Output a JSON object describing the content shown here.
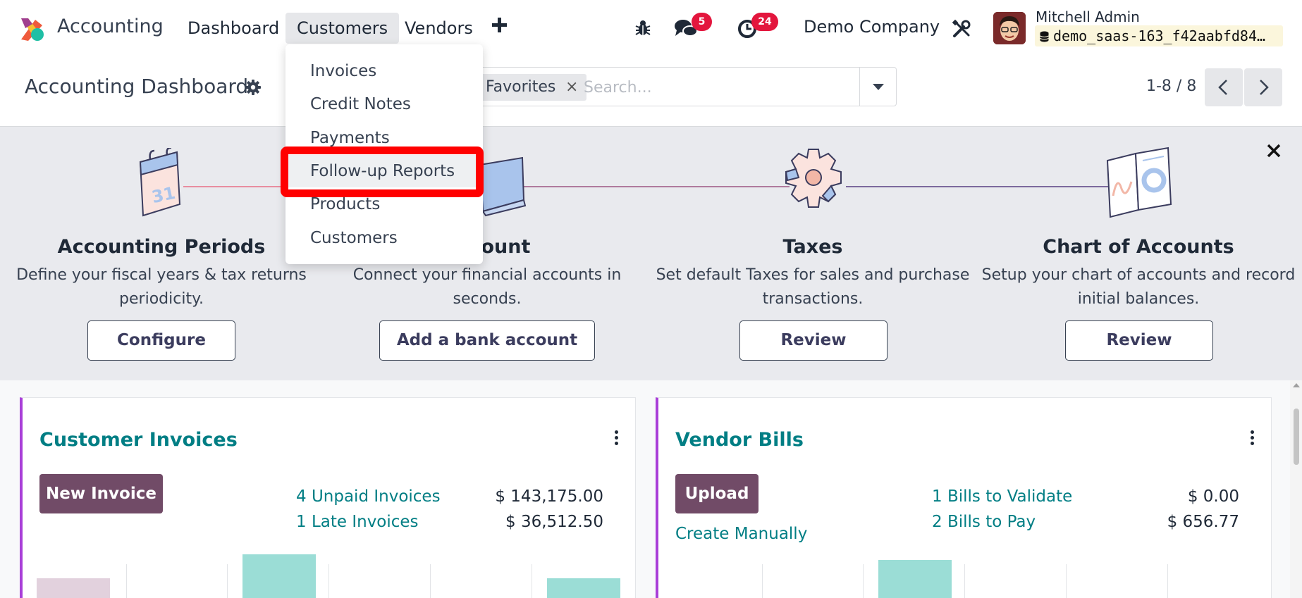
{
  "navbar": {
    "app_name": "Accounting",
    "menu": [
      "Dashboard",
      "Customers",
      "Vendors"
    ],
    "active_menu": "Customers",
    "messages_count": "5",
    "activities_count": "24",
    "company": "Demo Company",
    "user_name": "Mitchell Admin",
    "database": "demo_saas-163_f42aabfd84…"
  },
  "customers_menu": {
    "items": [
      "Invoices",
      "Credit Notes",
      "Payments",
      "Follow-up Reports",
      "Products",
      "Customers"
    ],
    "highlighted_item": "Follow-up Reports"
  },
  "control_panel": {
    "title": "Accounting Dashboard",
    "facet": "Favorites",
    "facet_remove": "×",
    "search_placeholder": "Search...",
    "pager_value": "1-8 / 8"
  },
  "onboarding": {
    "steps": [
      {
        "title": "Accounting Periods",
        "description_lines": [
          "Define your fiscal years & tax returns",
          "periodicity."
        ],
        "button": "Configure"
      },
      {
        "title": "Account",
        "description_lines": [
          "Connect your financial accounts in",
          "seconds."
        ],
        "button": "Add a bank account"
      },
      {
        "title": "Taxes",
        "description_lines": [
          "Set default Taxes for sales and purchase",
          "transactions."
        ],
        "button": "Review"
      },
      {
        "title": "Chart of Accounts",
        "description_lines": [
          "Setup your chart of accounts and record",
          "initial balances."
        ],
        "button": "Review"
      }
    ],
    "calendar_day": "31"
  },
  "journals": {
    "customer_invoices": {
      "title": "Customer Invoices",
      "primary_button": "New Invoice",
      "stats": [
        {
          "label": "4 Unpaid Invoices",
          "amount": "$ 143,175.00"
        },
        {
          "label": "1 Late Invoices",
          "amount": "$ 36,512.50"
        }
      ]
    },
    "vendor_bills": {
      "title": "Vendor Bills",
      "primary_button": "Upload",
      "secondary_link": "Create Manually",
      "stats": [
        {
          "label": "1 Bills to Validate",
          "amount": "$ 0.00"
        },
        {
          "label": "2 Bills to Pay",
          "amount": "$ 656.77"
        }
      ]
    }
  },
  "colors": {
    "brand": "#714b67",
    "link": "#017e84",
    "badge": "#e3163d",
    "card_border": "#a93fd8",
    "graph_bar": "#9bddd6",
    "graph_bar_past": "#e2d1dd",
    "highlight": "#ff0000"
  }
}
